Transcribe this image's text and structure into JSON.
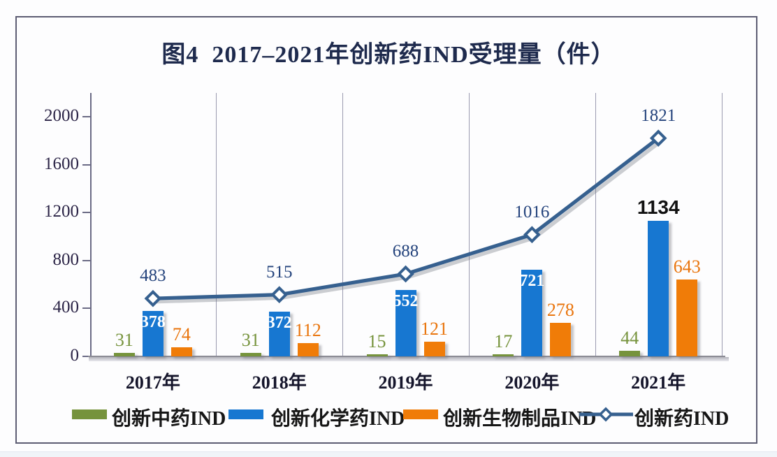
{
  "chart_data": {
    "type": "bar+line",
    "title": "图4  2017–2021年创新药IND受理量（件）",
    "categories": [
      "2017年",
      "2018年",
      "2019年",
      "2020年",
      "2021年"
    ],
    "series": [
      {
        "type": "bar",
        "name": "创新中药IND",
        "color": "#76933C",
        "label_color": "#76933C",
        "values": [
          31,
          31,
          15,
          17,
          44
        ]
      },
      {
        "type": "bar",
        "name": "创新化学药IND",
        "color": "#1777D1",
        "label_color": "#FFFFFF",
        "label_outside_color": "#111111",
        "label_placement": [
          "inside",
          "inside",
          "inside",
          "inside",
          "outside"
        ],
        "values": [
          378,
          372,
          552,
          721,
          1134
        ]
      },
      {
        "type": "bar",
        "name": "创新生物制品IND",
        "color": "#F07C08",
        "label_color": "#E9750D",
        "values": [
          74,
          112,
          121,
          278,
          643
        ]
      },
      {
        "type": "line",
        "name": "创新药IND",
        "color": "#36608F",
        "label_color": "#24437C",
        "marker": "diamond",
        "values": [
          483,
          515,
          688,
          1016,
          1821
        ]
      }
    ],
    "y_axis": {
      "min": 0,
      "max": 2000,
      "tick_interval": 400,
      "ticks": [
        0,
        400,
        800,
        1200,
        1600,
        2000
      ]
    },
    "legend": {
      "position": "bottom",
      "entries": [
        "创新中药IND",
        "创新化学药IND",
        "创新生物制品IND",
        "创新药IND"
      ]
    },
    "grid": {
      "vertical_category_separators": true,
      "horizontal_gridlines": false
    }
  }
}
